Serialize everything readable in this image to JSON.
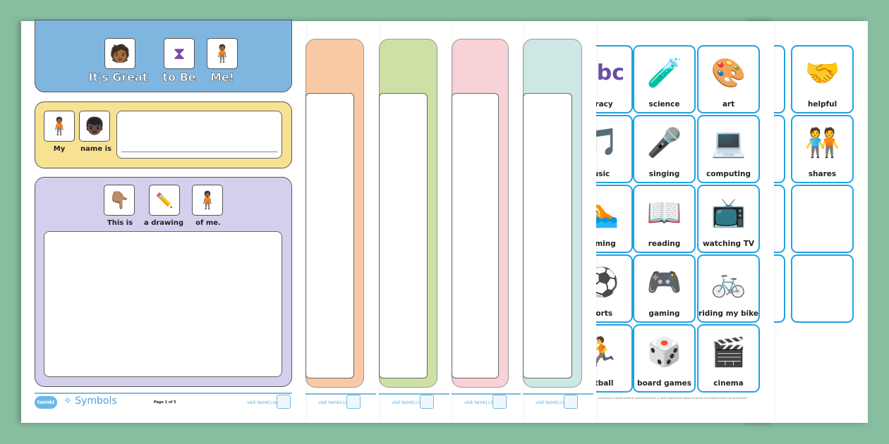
{
  "front_page": {
    "header": {
      "words": [
        "It's Great",
        "to Be",
        "Me!"
      ],
      "icons": [
        "face-icon",
        "hourglass-icon",
        "person-icon"
      ]
    },
    "name_row": {
      "words": [
        "My",
        "name is"
      ],
      "icons": [
        "person-icon",
        "child-icon"
      ]
    },
    "drawing_row": {
      "words": [
        "This is",
        "a drawing",
        "of me."
      ],
      "icons": [
        "hand-pointing-icon",
        "drawing-icon",
        "person-icon"
      ]
    },
    "footer": {
      "logo": "twinkl",
      "brand": "Symbols",
      "page": "Page 1 of 5",
      "visit": "visit twinkl.com"
    }
  },
  "colors": {
    "background": "#88bea0",
    "header_panel": "#7fb6e0",
    "name_panel": "#f7e292",
    "drawing_panel": "#d4cfec",
    "orange": "#f9c9a6",
    "green": "#cfe0a6",
    "pink": "#f8d2d6",
    "teal": "#cde7e4",
    "card_border": "#20a3e0"
  },
  "stacked_pages": [
    {
      "visit": "visit twinkl.com"
    },
    {
      "visit": "visit twinkl.com"
    },
    {
      "visit": "visit twinkl.com"
    },
    {
      "visit": "visit twinkl.com"
    }
  ],
  "cards": [
    [
      "eracy",
      "science",
      "art"
    ],
    [
      "usic",
      "singing",
      "computing"
    ],
    [
      "mming",
      "reading",
      "watching TV"
    ],
    [
      "ports",
      "gaming",
      "riding my bike"
    ],
    [
      "otball",
      "board games",
      "cinema"
    ]
  ],
  "card_icons": [
    [
      "abc",
      "🧪",
      "🎨"
    ],
    [
      "🎵",
      "🎤",
      "💻"
    ],
    [
      "🏊",
      "📖",
      "📺"
    ],
    [
      "⚽",
      "🎮",
      "🚲"
    ],
    [
      "🏃",
      "🎲",
      "🎬"
    ]
  ],
  "card_disclaimer": "...ponsibility to assess whether adult supervision or other appropriate safety measures are required when using materials.",
  "back_cards": [
    "helpful",
    "shares",
    "",
    ""
  ],
  "back_card_icons": [
    "🤝",
    "🧑‍🤝‍🧑",
    "",
    ""
  ]
}
